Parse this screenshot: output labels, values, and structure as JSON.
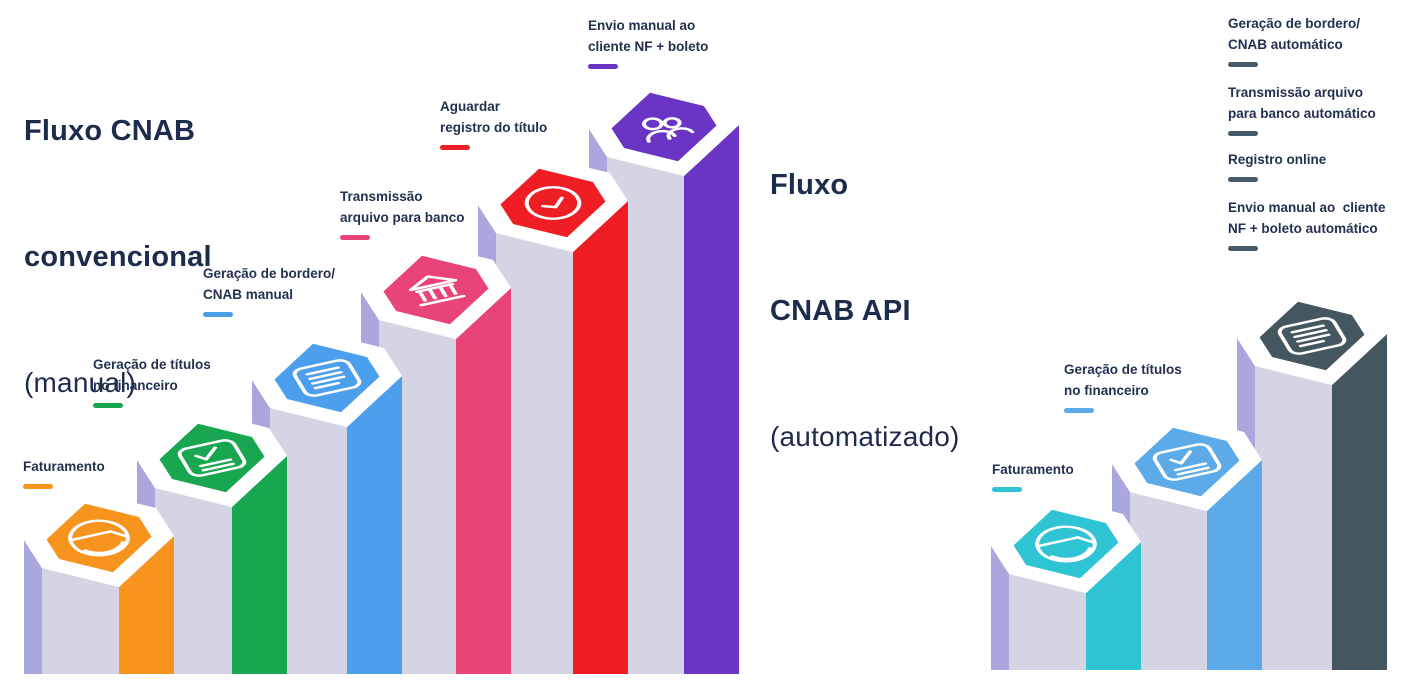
{
  "colors": {
    "title_text": "#1d2b4c",
    "label_text": "#223150",
    "pillar_front_face": "#d5d4e4",
    "pillar_left_strip": "#a9a7de",
    "legend_underline": "#465a68"
  },
  "left_chart": {
    "title_lines": [
      "Fluxo CNAB",
      "convencional"
    ],
    "subtitle": "(manual)",
    "steps": [
      {
        "label_lines": [
          "Faturamento"
        ],
        "color": "#f7941e",
        "icon": "wallet-icon"
      },
      {
        "label_lines": [
          "Geração de títulos",
          "no financeiro"
        ],
        "color": "#18a650",
        "icon": "document-check-icon"
      },
      {
        "label_lines": [
          "Geração de bordero/",
          "CNAB manual"
        ],
        "color": "#4b9fec",
        "icon": "document-lines-icon"
      },
      {
        "label_lines": [
          "Transmissão",
          "arquivo para banco"
        ],
        "color": "#e84477",
        "icon": "bank-icon"
      },
      {
        "label_lines": [
          "Aguardar",
          "registro do título"
        ],
        "color": "#ef1e24",
        "icon": "clock-icon"
      },
      {
        "label_lines": [
          "Envio manual ao",
          "cliente NF + boleto"
        ],
        "color": "#6a35c5",
        "icon": "people-icon"
      }
    ]
  },
  "right_chart": {
    "title_lines": [
      "Fluxo",
      "CNAB API"
    ],
    "subtitle": "(automatizado)",
    "steps": [
      {
        "label_lines": [
          "Faturamento"
        ],
        "color": "#2fc4d4",
        "icon": "wallet-icon"
      },
      {
        "label_lines": [
          "Geração de títulos",
          "no financeiro"
        ],
        "color": "#5cabe8",
        "icon": "document-check-icon"
      },
      {
        "label_lines": [],
        "color": "#44565f",
        "icon": "document-lines-icon"
      }
    ],
    "legend": [
      {
        "label_lines": [
          "Geração de bordero/",
          "CNAB automático"
        ]
      },
      {
        "label_lines": [
          "Transmissão arquivo",
          "para banco automático"
        ]
      },
      {
        "label_lines": [
          "Registro online"
        ]
      },
      {
        "label_lines": [
          "Envio manual ao  cliente",
          "NF + boleto automático"
        ]
      }
    ]
  }
}
